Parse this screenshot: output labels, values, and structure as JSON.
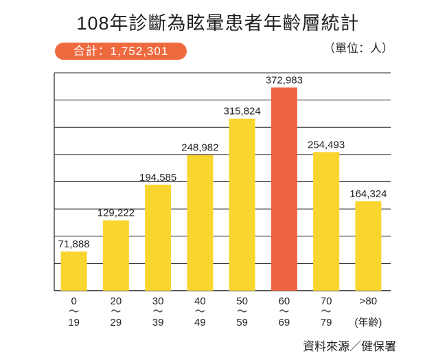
{
  "title": "108年診斷為眩暈患者年齡層統計",
  "total_label": "合計：1,752,301",
  "unit_label": "（單位：人）",
  "source_label": "資料來源／健保署",
  "colors": {
    "bar": "#f9d530",
    "highlight": "#ec6440",
    "grid": "#231f20"
  },
  "chart_data": {
    "type": "bar",
    "categories": [
      "0～19",
      "20～29",
      "30～39",
      "40～49",
      "50～59",
      "60～69",
      "70～79",
      ">80"
    ],
    "tick_labels": [
      [
        "0",
        "～",
        "19"
      ],
      [
        "20",
        "～",
        "29"
      ],
      [
        "30",
        "～",
        "39"
      ],
      [
        "40",
        "～",
        "49"
      ],
      [
        "50",
        "～",
        "59"
      ],
      [
        "60",
        "～",
        "69"
      ],
      [
        "70",
        "～",
        "79"
      ],
      [
        ">80",
        "",
        "(年齡)"
      ]
    ],
    "values": [
      71888,
      129222,
      194585,
      248982,
      315824,
      372983,
      254493,
      164324
    ],
    "value_labels": [
      "71,888",
      "129,222",
      "194,585",
      "248,982",
      "315,824",
      "372,983",
      "254,493",
      "164,324"
    ],
    "highlight_index": 5,
    "ylim": [
      0,
      400000
    ],
    "grid": true
  }
}
